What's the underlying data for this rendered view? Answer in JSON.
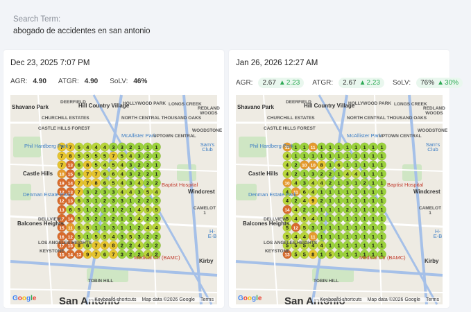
{
  "search": {
    "label": "Search Term:",
    "value": "abogado de accidentes en san antonio"
  },
  "cards": [
    {
      "date": "Dec 23, 2025 7:07 PM",
      "metrics": [
        {
          "label": "AGR:",
          "value": "4.90",
          "change": ""
        },
        {
          "label": "ATGR:",
          "value": "4.90",
          "change": ""
        },
        {
          "label": "SoLV:",
          "value": "46%",
          "change": ""
        }
      ],
      "grid": [
        [
          7,
          7,
          5,
          4,
          4,
          4,
          3,
          3,
          2,
          1,
          1,
          1
        ],
        [
          7,
          8,
          5,
          5,
          5,
          5,
          7,
          5,
          4,
          3,
          2,
          1
        ],
        [
          7,
          13,
          6,
          8,
          5,
          4,
          5,
          4,
          3,
          2,
          2,
          1
        ],
        [
          10,
          15,
          6,
          7,
          7,
          6,
          6,
          4,
          3,
          2,
          2,
          1
        ],
        [
          19,
          14,
          7,
          7,
          8,
          6,
          5,
          4,
          3,
          4,
          2,
          2
        ],
        [
          12,
          13,
          7,
          3,
          2,
          3,
          3,
          4,
          4,
          3,
          5,
          4
        ],
        [
          12,
          13,
          6,
          3,
          1,
          2,
          3,
          3,
          1,
          2,
          2,
          3
        ],
        [
          13,
          6,
          5,
          1,
          2,
          1,
          1,
          2,
          1,
          4,
          5,
          5
        ],
        [
          17,
          14,
          5,
          3,
          2,
          1,
          2,
          1,
          3,
          4,
          2,
          3
        ],
        [
          15,
          11,
          6,
          5,
          1,
          1,
          3,
          1,
          1,
          2,
          4,
          4
        ],
        [
          16,
          12,
          5,
          1,
          5,
          5,
          4,
          3,
          5,
          3,
          2,
          2
        ],
        [
          17,
          15,
          8,
          6,
          7,
          9,
          8,
          2,
          2,
          4,
          3,
          2
        ],
        [
          15,
          14,
          13,
          9,
          7,
          6,
          7,
          3,
          2,
          2,
          4,
          2
        ]
      ]
    },
    {
      "date": "Jan 26, 2026 12:27 AM",
      "metrics": [
        {
          "label": "AGR:",
          "value": "2.67",
          "change": "2.23"
        },
        {
          "label": "ATGR:",
          "value": "2.67",
          "change": "2.23"
        },
        {
          "label": "SoLV:",
          "value": "76%",
          "change": "30%"
        }
      ],
      "grid": [
        [
          11,
          1,
          1,
          11,
          1,
          1,
          1,
          1,
          1,
          1,
          1,
          1
        ],
        [
          4,
          1,
          1,
          1,
          1,
          1,
          1,
          1,
          1,
          1,
          1,
          1
        ],
        [
          4,
          2,
          10,
          10,
          8,
          1,
          6,
          1,
          1,
          1,
          1,
          1
        ],
        [
          4,
          2,
          1,
          3,
          2,
          2,
          1,
          4,
          4,
          1,
          1,
          1
        ],
        [
          10,
          4,
          3,
          4,
          4,
          2,
          1,
          3,
          1,
          2,
          1,
          1
        ],
        [
          4,
          11,
          6,
          4,
          1,
          1,
          1,
          1,
          1,
          1,
          1,
          1
        ],
        [
          4,
          2,
          4,
          9,
          2,
          1,
          1,
          1,
          1,
          1,
          1,
          1
        ],
        [
          14,
          4,
          2,
          1,
          1,
          1,
          1,
          2,
          1,
          1,
          1,
          1
        ],
        [
          5,
          4,
          5,
          4,
          1,
          1,
          1,
          1,
          1,
          1,
          1,
          1
        ],
        [
          5,
          12,
          5,
          3,
          1,
          1,
          1,
          1,
          1,
          1,
          1,
          1
        ],
        [
          5,
          4,
          4,
          11,
          1,
          1,
          1,
          1,
          1,
          1,
          1,
          1
        ],
        [
          5,
          5,
          5,
          4,
          4,
          1,
          1,
          1,
          1,
          1,
          1,
          1
        ],
        [
          13,
          5,
          5,
          8,
          1,
          5,
          1,
          1,
          1,
          1,
          1,
          1
        ]
      ]
    }
  ],
  "map": {
    "places": [
      "Shavano Park",
      "DEERFIELD",
      "Hill Country Village",
      "HOLLYWOOD PARK",
      "LONGS CREEK",
      "REDLAND WOODS",
      "CHURCHILL ESTATES",
      "NORTH CENTRAL THOUSAND OAKS",
      "CASTLE HILLS FOREST",
      "McAllister Park",
      "WOODSTONE",
      "UPTOWN CENTRAL",
      "Sam's Club",
      "Phil Hardberg Park",
      "Castle Hills",
      "Baptist Hospital",
      "Windcrest",
      "Denman Estate Park",
      "CAMELOT 1",
      "Balcones Heights",
      "DELLVIEW",
      "H-E-B",
      "Medical Ctr (BAMC)",
      "Kirby",
      "LOS ANGELES HEIGHTS",
      "KEYSTONE",
      "TOBIN HILL",
      "San Antonio"
    ],
    "google": "Google",
    "shortcuts": "Keyboard shortcuts",
    "mapdata": "Map data ©2026 Google",
    "terms": "Terms"
  },
  "colors": {
    "pill_bg": "#e9f7ee",
    "up": "#2eaa55"
  }
}
